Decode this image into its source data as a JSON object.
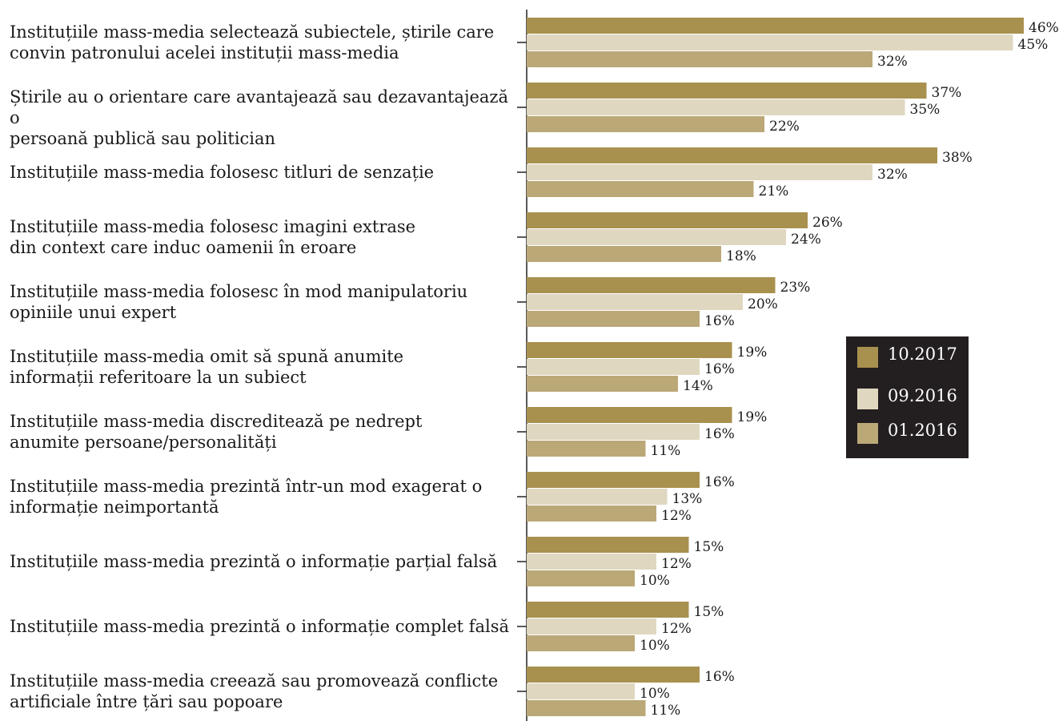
{
  "chart_data": {
    "type": "bar",
    "orientation": "horizontal",
    "categories": [
      "Instituțiile mass-media selectează subiectele, știrile care\nconvin patronului acelei instituții mass-media",
      "Știrile au o orientare care avantajează sau dezavantajează o\npersoană publică sau politician",
      "Instituțiile mass-media folosesc titluri de senzație",
      "Instituțiile mass-media folosesc imagini extrase\ndin context care induc oamenii în eroare",
      "Instituțiile mass-media folosesc în mod  manipulatoriu\nopiniile unui expert",
      "Instituțiile mass-media omit să spună anumite\ninformații referitoare la un subiect",
      "Instituțiile mass-media discreditează pe nedrept\nanumite persoane/personalități",
      "Instituțiile mass-media prezintă într-un mod exagerat o\ninformație neimportantă",
      "Instituțiile mass-media prezintă o informație parțial falsă",
      "Instituțiile mass-media prezintă o informație complet falsă",
      "Instituțiile mass-media creează sau promovează  conflicte\nartificiale între țări sau popoare"
    ],
    "series": [
      {
        "name": "10.2017",
        "color": "#a8914f",
        "values": [
          46,
          37,
          38,
          26,
          23,
          19,
          19,
          16,
          15,
          15,
          16
        ]
      },
      {
        "name": "09.2016",
        "color": "#e0d7c0",
        "values": [
          45,
          35,
          32,
          24,
          20,
          16,
          16,
          13,
          12,
          12,
          10
        ]
      },
      {
        "name": "01.2016",
        "color": "#bba877",
        "values": [
          32,
          22,
          21,
          18,
          16,
          14,
          11,
          12,
          10,
          10,
          11
        ]
      }
    ],
    "value_suffix": "%",
    "xlim": [
      0,
      50
    ],
    "legend_position": "right",
    "legend_background": "#231f20",
    "grid": false
  }
}
